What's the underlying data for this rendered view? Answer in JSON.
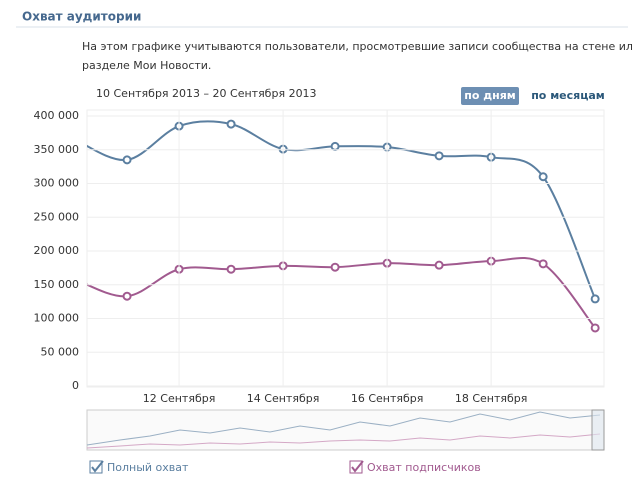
{
  "header": {
    "title": "Охват аудитории",
    "description_line1": "На этом графике учитываются пользователи, просмотревшие записи сообщества на стене или в",
    "description_line2": "разделе Мои Новости.",
    "date_range": "10 Сентября 2013 – 20 Сентября 2013",
    "buttons": [
      "по дням",
      "по месяцам"
    ]
  },
  "chart_data": {
    "type": "line",
    "x": [
      10,
      11,
      12,
      13,
      14,
      15,
      16,
      17,
      18,
      19,
      20
    ],
    "xlim": [
      10.23,
      20.17
    ],
    "xticks": [
      {
        "value": 12,
        "label": "12 Сентября"
      },
      {
        "value": 14,
        "label": "14 Сентября"
      },
      {
        "value": 16,
        "label": "16 Сентября"
      },
      {
        "value": 18,
        "label": "18 Сентября"
      }
    ],
    "ylim": [
      0,
      400000
    ],
    "yticks": [
      {
        "value": 0,
        "label": "0"
      },
      {
        "value": 50000,
        "label": "50 000"
      },
      {
        "value": 100000,
        "label": "100 000"
      },
      {
        "value": 150000,
        "label": "150 000"
      },
      {
        "value": 200000,
        "label": "200 000"
      },
      {
        "value": 250000,
        "label": "250 000"
      },
      {
        "value": 300000,
        "label": "300 000"
      },
      {
        "value": 350000,
        "label": "350 000"
      },
      {
        "value": 400000,
        "label": "400 000"
      }
    ],
    "grid": true,
    "series": [
      {
        "name": "Полный охват",
        "color": "#5b7fa0",
        "values": [
          365000,
          335000,
          385000,
          388000,
          351000,
          355000,
          354000,
          341000,
          339000,
          310000,
          129000
        ]
      },
      {
        "name": "Охват подписчиков",
        "color": "#a15a8f",
        "values": [
          158000,
          133000,
          173000,
          173000,
          178000,
          176000,
          182000,
          179000,
          185000,
          181000,
          86000
        ]
      }
    ]
  }
}
